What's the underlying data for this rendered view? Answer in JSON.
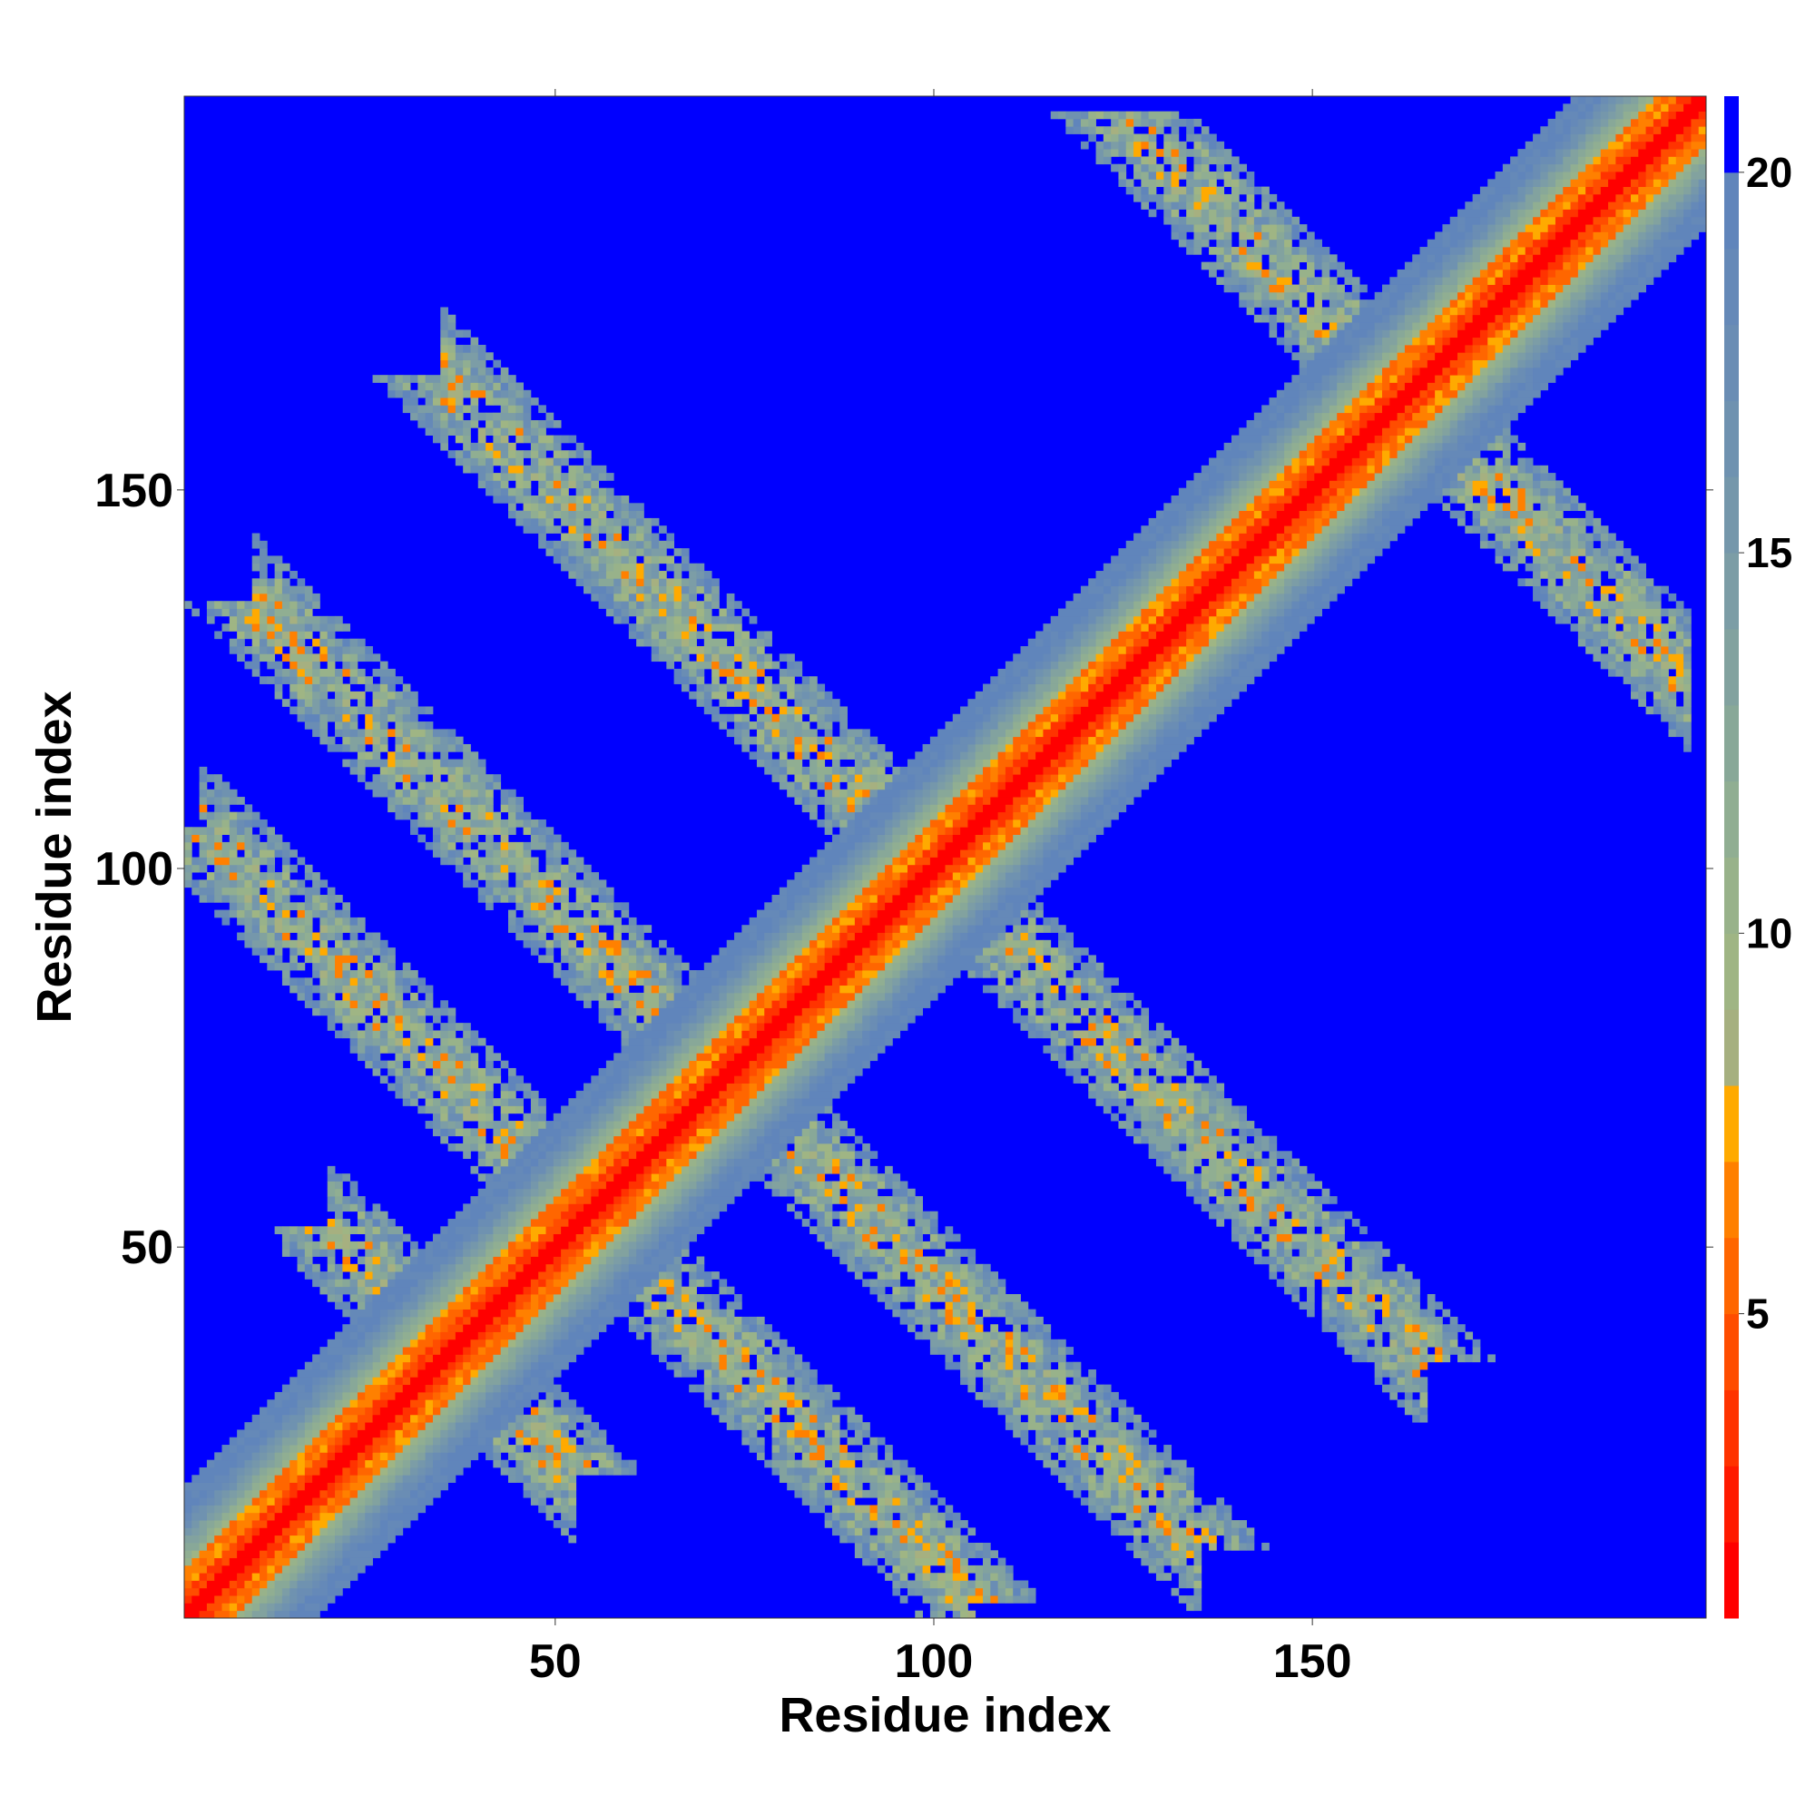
{
  "chart_data": {
    "type": "heatmap",
    "title": "",
    "xlabel": "Residue index",
    "ylabel": "Residue index",
    "n_residues": 202,
    "xlim": [
      1,
      202
    ],
    "ylim": [
      1,
      202
    ],
    "x_ticks": [
      50,
      100,
      150
    ],
    "y_ticks": [
      50,
      100,
      150
    ],
    "colorbar": {
      "ticks": [
        5,
        10,
        15,
        20
      ],
      "range": [
        1,
        21
      ],
      "levels": [
        {
          "max": 2,
          "color": "#ff0000"
        },
        {
          "max": 3,
          "color": "#ff1a00"
        },
        {
          "max": 4,
          "color": "#ff3300"
        },
        {
          "max": 5,
          "color": "#ff4d00"
        },
        {
          "max": 6,
          "color": "#ff6600"
        },
        {
          "max": 7,
          "color": "#ff8000"
        },
        {
          "max": 8,
          "color": "#ffaa00"
        },
        {
          "max": 9,
          "color": "#a6b080"
        },
        {
          "max": 10,
          "color": "#9fb584"
        },
        {
          "max": 11,
          "color": "#98b28a"
        },
        {
          "max": 12,
          "color": "#90ae92"
        },
        {
          "max": 13,
          "color": "#88a898"
        },
        {
          "max": 14,
          "color": "#82a29f"
        },
        {
          "max": 15,
          "color": "#7c9da6"
        },
        {
          "max": 16,
          "color": "#7597ab"
        },
        {
          "max": 17,
          "color": "#6f92b0"
        },
        {
          "max": 18,
          "color": "#6a8db4"
        },
        {
          "max": 19,
          "color": "#6589b8"
        },
        {
          "max": 20,
          "color": "#6085bb"
        },
        {
          "max": 21,
          "color": "#0000ff"
        }
      ]
    },
    "grid": false,
    "legend": "colorbar-right",
    "description_of_pattern": {
      "main_diagonal": "contact distance ~1-4 along i=j, band half-width ~20 residues",
      "antiparallel_bands": [
        {
          "center_sum": 72,
          "range_i": [
            20,
            52
          ]
        },
        {
          "center_sum": 108,
          "range_i": [
            3,
            105
          ]
        },
        {
          "center_sum": 145,
          "range_i": [
            10,
            135
          ]
        },
        {
          "center_sum": 200,
          "range_i": [
            35,
            165
          ]
        },
        {
          "center_sum": 325,
          "range_i": [
            145,
            200
          ]
        }
      ],
      "background_value": 21
    }
  }
}
